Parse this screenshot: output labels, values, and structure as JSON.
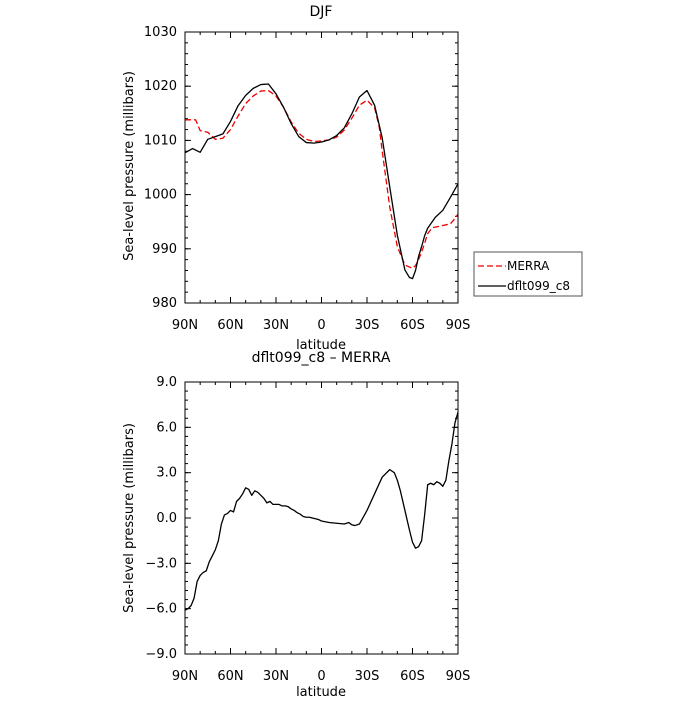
{
  "chart_data": [
    {
      "type": "line",
      "title": "DJF",
      "xlabel": "latitude",
      "ylabel": "Sea-level pressure (millibars)",
      "xlim": [
        90,
        -90
      ],
      "ylim": [
        980,
        1030
      ],
      "x_ticks": [
        {
          "value": 90,
          "label": "90N"
        },
        {
          "value": 60,
          "label": "60N"
        },
        {
          "value": 30,
          "label": "30N"
        },
        {
          "value": 0,
          "label": "0"
        },
        {
          "value": -30,
          "label": "30S"
        },
        {
          "value": -60,
          "label": "60S"
        },
        {
          "value": -90,
          "label": "90S"
        }
      ],
      "y_ticks": [
        {
          "value": 980,
          "label": "980"
        },
        {
          "value": 990,
          "label": "990"
        },
        {
          "value": 1000,
          "label": "1000"
        },
        {
          "value": 1010,
          "label": "1010"
        },
        {
          "value": 1020,
          "label": "1020"
        },
        {
          "value": 1030,
          "label": "1030"
        }
      ],
      "legend": {
        "placement": "right"
      },
      "series": [
        {
          "name": "MERRA",
          "color": "#ee0000",
          "dash": true,
          "x": [
            90,
            83,
            80,
            75,
            70,
            65,
            60,
            55,
            50,
            45,
            40,
            35,
            30,
            25,
            20,
            15,
            10,
            5,
            0,
            -5,
            -10,
            -15,
            -20,
            -25,
            -30,
            -35,
            -38,
            -40,
            -45,
            -50,
            -55,
            -60,
            -62,
            -64,
            -66,
            -68,
            -70,
            -73,
            -75,
            -80,
            -85,
            -88,
            -90
          ],
          "y": [
            1013.8,
            1013.8,
            1011.8,
            1011.5,
            1010.2,
            1010.4,
            1012,
            1014.5,
            1016.8,
            1018.2,
            1019.1,
            1019.2,
            1018.2,
            1016.1,
            1013.4,
            1011.3,
            1010.2,
            1009.8,
            1009.9,
            1010.1,
            1010.6,
            1011.9,
            1014.1,
            1016.5,
            1017.4,
            1016,
            1012.6,
            1008.1,
            997.7,
            990.4,
            987,
            986.4,
            986.9,
            988,
            989.4,
            991,
            992.8,
            993.9,
            994,
            994.3,
            994.6,
            995.6,
            996.4
          ]
        },
        {
          "name": "dflt099_c8",
          "color": "#000000",
          "dash": false,
          "x": [
            90,
            85,
            80,
            75,
            70,
            65,
            60,
            55,
            50,
            45,
            40,
            35,
            30,
            25,
            20,
            15,
            10,
            5,
            0,
            -5,
            -10,
            -15,
            -20,
            -25,
            -30,
            -35,
            -40,
            -45,
            -50,
            -55,
            -58,
            -60,
            -62,
            -64,
            -66,
            -68,
            -70,
            -75,
            -80,
            -85,
            -90
          ],
          "y": [
            1007.7,
            1008.5,
            1007.8,
            1010.2,
            1010.7,
            1011.2,
            1013.5,
            1016.4,
            1018.3,
            1019.6,
            1020.3,
            1020.4,
            1018.6,
            1016.1,
            1013.1,
            1010.7,
            1009.6,
            1009.5,
            1009.7,
            1010.1,
            1010.9,
            1012.3,
            1014.9,
            1018,
            1019.2,
            1016.5,
            1010.5,
            1001.4,
            992.5,
            986.1,
            984.7,
            984.5,
            986,
            988.6,
            990.4,
            992.4,
            993.8,
            995.8,
            997.1,
            999.5,
            1002
          ]
        }
      ]
    },
    {
      "type": "line",
      "title": "dflt099_c8 – MERRA",
      "xlabel": "latitude",
      "ylabel": "Sea-level pressure (millibars)",
      "xlim": [
        90,
        -90
      ],
      "ylim": [
        -9,
        9
      ],
      "x_ticks": [
        {
          "value": 90,
          "label": "90N"
        },
        {
          "value": 60,
          "label": "60N"
        },
        {
          "value": 30,
          "label": "30N"
        },
        {
          "value": 0,
          "label": "0"
        },
        {
          "value": -30,
          "label": "30S"
        },
        {
          "value": -60,
          "label": "60S"
        },
        {
          "value": -90,
          "label": "90S"
        }
      ],
      "y_ticks": [
        {
          "value": -9,
          "label": "−9.0"
        },
        {
          "value": -6,
          "label": "−6.0"
        },
        {
          "value": -3,
          "label": "−3.0"
        },
        {
          "value": 0,
          "label": "0.0"
        },
        {
          "value": 3,
          "label": "3.0"
        },
        {
          "value": 6,
          "label": "6.0"
        },
        {
          "value": 9,
          "label": "9.0"
        }
      ],
      "series": [
        {
          "color": "#000000",
          "dash": false,
          "x": [
            90,
            88,
            86,
            84,
            82,
            80,
            78,
            76,
            74,
            72,
            70,
            68,
            66,
            64,
            62,
            60,
            58,
            56,
            54,
            52,
            50,
            48,
            46,
            44,
            42,
            40,
            38,
            36,
            34,
            32,
            30,
            28,
            26,
            24,
            22,
            20,
            18,
            16,
            14,
            12,
            10,
            8,
            6,
            4,
            2,
            0,
            -5,
            -10,
            -15,
            -18,
            -20,
            -22,
            -25,
            -30,
            -35,
            -40,
            -45,
            -48,
            -50,
            -52,
            -55,
            -58,
            -60,
            -62,
            -64,
            -66,
            -68,
            -70,
            -72,
            -74,
            -76,
            -78,
            -80,
            -82,
            -84,
            -86,
            -88,
            -90
          ],
          "y": [
            -6.1,
            -6.0,
            -5.8,
            -5.3,
            -4.2,
            -3.8,
            -3.6,
            -3.5,
            -2.9,
            -2.5,
            -2.1,
            -1.5,
            -0.4,
            0.2,
            0.3,
            0.5,
            0.4,
            1.1,
            1.3,
            1.6,
            2.0,
            1.9,
            1.5,
            1.8,
            1.7,
            1.5,
            1.3,
            1.0,
            1.1,
            0.9,
            0.9,
            0.9,
            0.8,
            0.8,
            0.75,
            0.6,
            0.5,
            0.35,
            0.25,
            0.1,
            0.05,
            0.05,
            0.0,
            -0.05,
            -0.1,
            -0.2,
            -0.3,
            -0.35,
            -0.4,
            -0.3,
            -0.45,
            -0.5,
            -0.4,
            0.5,
            1.6,
            2.7,
            3.2,
            3.0,
            2.5,
            1.8,
            0.5,
            -0.8,
            -1.6,
            -2.0,
            -1.9,
            -1.5,
            0.2,
            2.2,
            2.3,
            2.2,
            2.4,
            2.3,
            2.1,
            2.5,
            3.8,
            4.9,
            6.3,
            7.0
          ]
        }
      ]
    }
  ]
}
